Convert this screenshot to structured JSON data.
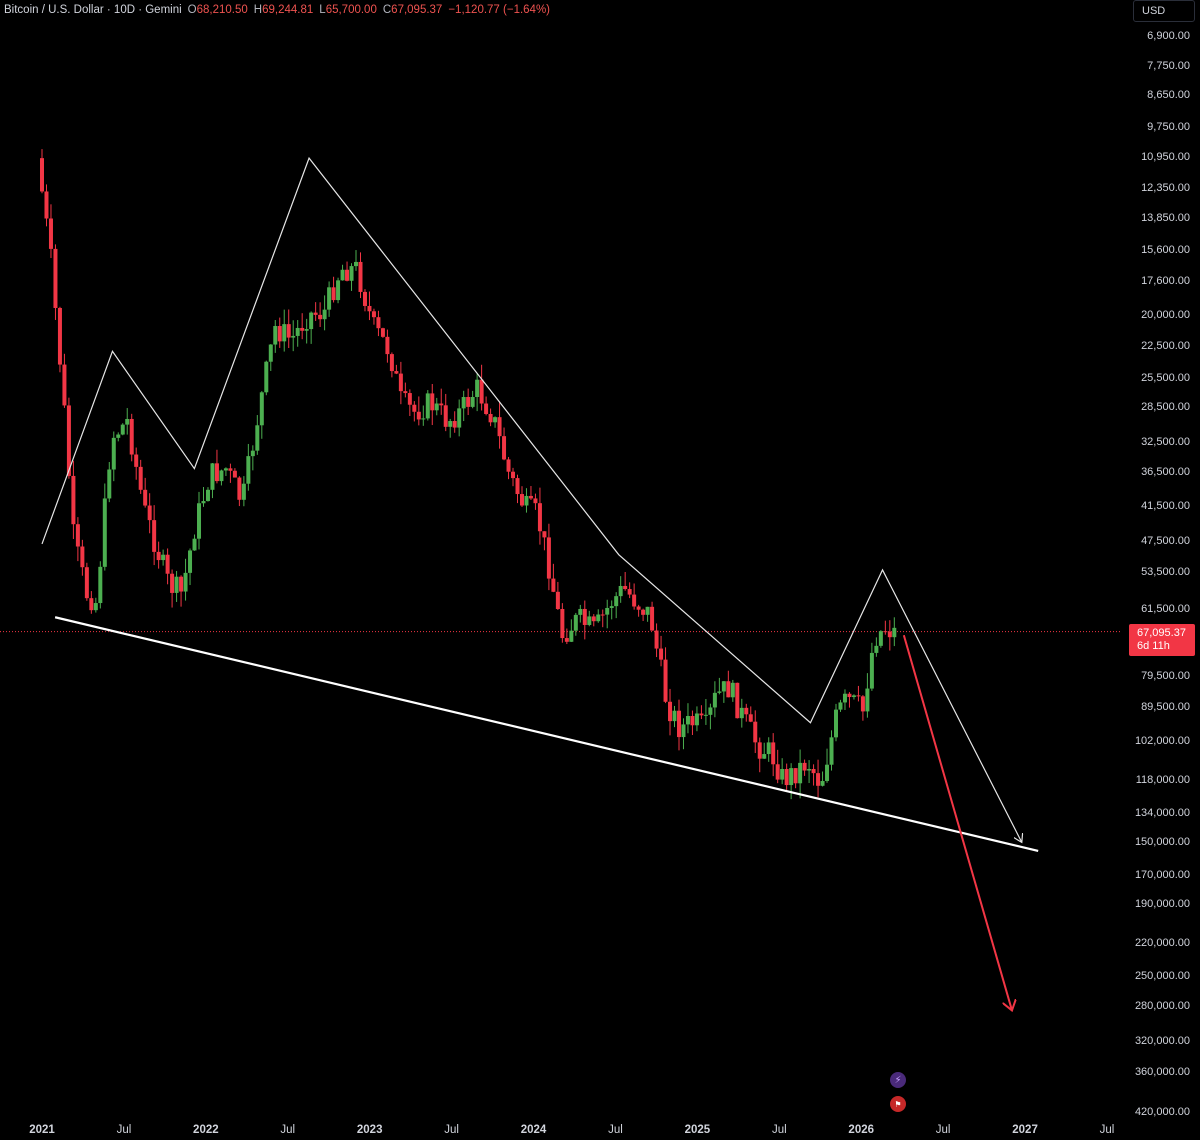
{
  "legend": {
    "symbol": "Bitcoin / U.S. Dollar · 10D · Gemini",
    "open_key": "O",
    "open": "68,210.50",
    "high_key": "H",
    "high": "69,244.81",
    "low_key": "L",
    "low": "65,700.00",
    "close_key": "C",
    "close": "67,095.37",
    "change": "−1,120.77 (−1.64%)"
  },
  "currency": "USD",
  "current_price": {
    "value": "67,095.37",
    "countdown": "6d 11h"
  },
  "icons": {
    "event1": "lightning-icon",
    "event2": "us-flag-icon"
  },
  "colors": {
    "up": "#4caf50",
    "down": "#f23645",
    "pattern": "#e6e6e6",
    "arrow": "#f23645",
    "price_line": "#f23645"
  },
  "chart_data": {
    "type": "candlestick",
    "title": "Bitcoin / U.S. Dollar · 10D · Gemini",
    "price_scale": "log, inverted",
    "y_tick_labels": [
      "6,900.00",
      "7,750.00",
      "8,650.00",
      "9,750.00",
      "10,950.00",
      "12,350.00",
      "13,850.00",
      "15,600.00",
      "17,600.00",
      "20,000.00",
      "22,500.00",
      "25,500.00",
      "28,500.00",
      "32,500.00",
      "36,500.00",
      "41,500.00",
      "47,500.00",
      "53,500.00",
      "61,500.00",
      "79,500.00",
      "89,500.00",
      "102,000.00",
      "118,000.00",
      "134,000.00",
      "150,000.00",
      "170,000.00",
      "190,000.00",
      "220,000.00",
      "250,000.00",
      "280,000.00",
      "320,000.00",
      "360,000.00",
      "420,000.00"
    ],
    "x_tick_labels": [
      {
        "label": "2021",
        "bold": true
      },
      {
        "label": "Jul",
        "bold": false
      },
      {
        "label": "2022",
        "bold": true
      },
      {
        "label": "Jul",
        "bold": false
      },
      {
        "label": "2023",
        "bold": true
      },
      {
        "label": "Jul",
        "bold": false
      },
      {
        "label": "2024",
        "bold": true
      },
      {
        "label": "Jul",
        "bold": false
      },
      {
        "label": "2025",
        "bold": true
      },
      {
        "label": "Jul",
        "bold": false
      },
      {
        "label": "2026",
        "bold": true
      },
      {
        "label": "Jul",
        "bold": false
      },
      {
        "label": "2027",
        "bold": true
      },
      {
        "label": "Jul",
        "bold": false
      }
    ],
    "x_range": [
      2021.0,
      2027.5
    ],
    "last_price": 67095.37,
    "ohlc_path": [
      [
        2021.0,
        11000
      ],
      [
        2021.08,
        16000
      ],
      [
        2021.16,
        28000
      ],
      [
        2021.22,
        47000
      ],
      [
        2021.3,
        58000
      ],
      [
        2021.36,
        60000
      ],
      [
        2021.45,
        32000
      ],
      [
        2021.55,
        30000
      ],
      [
        2021.65,
        42000
      ],
      [
        2021.72,
        48000
      ],
      [
        2021.8,
        56000
      ],
      [
        2021.88,
        58000
      ],
      [
        2021.96,
        45000
      ],
      [
        2022.05,
        37000
      ],
      [
        2022.15,
        36000
      ],
      [
        2022.25,
        41000
      ],
      [
        2022.35,
        29000
      ],
      [
        2022.45,
        21000
      ],
      [
        2022.55,
        22000
      ],
      [
        2022.65,
        20000
      ],
      [
        2022.75,
        19800
      ],
      [
        2022.85,
        16800
      ],
      [
        2022.95,
        16800
      ],
      [
        2023.05,
        21000
      ],
      [
        2023.15,
        23000
      ],
      [
        2023.22,
        28000
      ],
      [
        2023.3,
        29000
      ],
      [
        2023.4,
        28000
      ],
      [
        2023.5,
        30000
      ],
      [
        2023.58,
        29000
      ],
      [
        2023.68,
        26500
      ],
      [
        2023.78,
        29500
      ],
      [
        2023.88,
        37000
      ],
      [
        2023.98,
        42000
      ],
      [
        2024.05,
        43000
      ],
      [
        2024.12,
        52000
      ],
      [
        2024.2,
        68000
      ],
      [
        2024.3,
        64000
      ],
      [
        2024.4,
        67000
      ],
      [
        2024.5,
        60000
      ],
      [
        2024.58,
        57000
      ],
      [
        2024.66,
        60000
      ],
      [
        2024.74,
        63000
      ],
      [
        2024.84,
        88000
      ],
      [
        2024.92,
        97000
      ],
      [
        2025.0,
        95000
      ],
      [
        2025.08,
        97000
      ],
      [
        2025.14,
        86000
      ],
      [
        2025.22,
        83000
      ],
      [
        2025.32,
        95000
      ],
      [
        2025.4,
        104000
      ],
      [
        2025.48,
        107000
      ],
      [
        2025.55,
        118000
      ],
      [
        2025.62,
        115000
      ],
      [
        2025.7,
        110000
      ],
      [
        2025.78,
        120000
      ],
      [
        2025.82,
        108000
      ],
      [
        2025.88,
        92000
      ],
      [
        2025.94,
        87000
      ],
      [
        2026.0,
        89000
      ],
      [
        2026.04,
        91000
      ],
      [
        2026.08,
        75000
      ],
      [
        2026.12,
        68000
      ],
      [
        2026.18,
        66000
      ],
      [
        2026.22,
        67095
      ]
    ],
    "annotations": [
      {
        "type": "zigzag",
        "points": [
          [
            2021.0,
            48000
          ],
          [
            2021.43,
            23000
          ],
          [
            2021.93,
            36000
          ],
          [
            2022.63,
            11000
          ],
          [
            2024.52,
            50000
          ],
          [
            2025.69,
            95000
          ],
          [
            2026.13,
            53000
          ],
          [
            2026.98,
            150000
          ]
        ]
      },
      {
        "type": "trendline",
        "points": [
          [
            2021.08,
            63500
          ],
          [
            2027.08,
            155000
          ]
        ]
      },
      {
        "type": "arrow",
        "points": [
          [
            2026.26,
            68000
          ],
          [
            2026.92,
            285000
          ]
        ]
      }
    ]
  }
}
